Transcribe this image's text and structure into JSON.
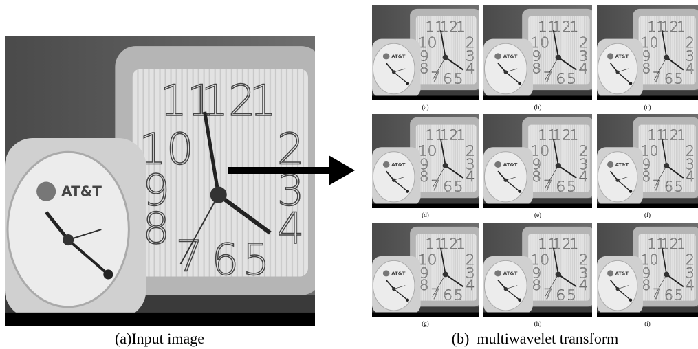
{
  "figure": {
    "input_caption": "(a)Input image",
    "output_caption": "(b)  multiwavelet transform",
    "panels": [
      "(a)",
      "(b)",
      "(c)",
      "(d)",
      "(e)",
      "(f)",
      "(g)",
      "(h)",
      "(i)"
    ]
  }
}
